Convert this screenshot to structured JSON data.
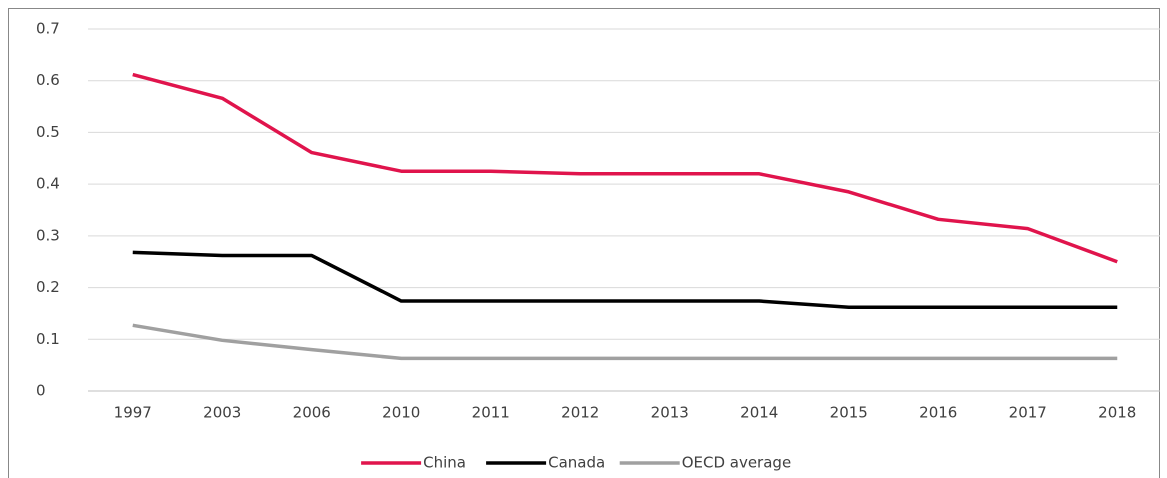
{
  "chart_data": {
    "type": "line",
    "categories": [
      "1997",
      "2003",
      "2006",
      "2010",
      "2011",
      "2012",
      "2013",
      "2014",
      "2015",
      "2016",
      "2017",
      "2018"
    ],
    "series": [
      {
        "name": "China",
        "color": "#e0144c",
        "values": [
          0.612,
          0.566,
          0.461,
          0.425,
          0.425,
          0.42,
          0.42,
          0.42,
          0.385,
          0.332,
          0.314,
          0.25
        ]
      },
      {
        "name": "Canada",
        "color": "#000000",
        "values": [
          0.268,
          0.262,
          0.262,
          0.174,
          0.174,
          0.174,
          0.174,
          0.174,
          0.162,
          0.162,
          0.162,
          0.162
        ]
      },
      {
        "name": "OECD average",
        "color": "#a0a0a0",
        "values": [
          0.127,
          0.098,
          0.08,
          0.063,
          0.063,
          0.063,
          0.063,
          0.063,
          0.063,
          0.063,
          0.063,
          0.063
        ]
      }
    ],
    "ylim": [
      0,
      0.7
    ],
    "yticks": [
      0,
      0.1,
      0.2,
      0.3,
      0.4,
      0.5,
      0.6,
      0.7
    ],
    "grid": true,
    "legend": "bottom"
  }
}
